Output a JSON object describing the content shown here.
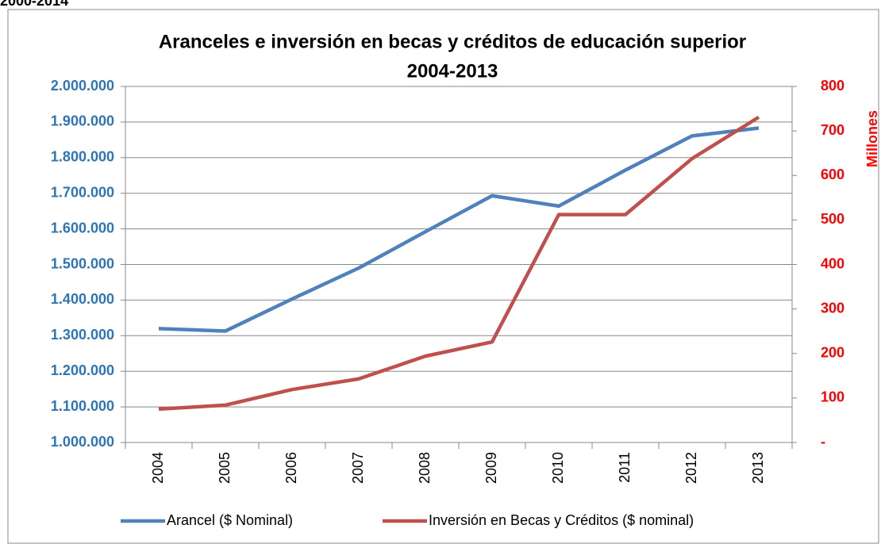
{
  "header": {
    "text": "2000-2014"
  },
  "chart_data": {
    "type": "line",
    "title": [
      "Aranceles e inversión en becas y créditos de educación superior",
      "2004-2013"
    ],
    "y2_label": "Millones",
    "categories": [
      "2004",
      "2005",
      "2006",
      "2007",
      "2008",
      "2009",
      "2010",
      "2011",
      "2012",
      "2013"
    ],
    "series": [
      {
        "name": "Arancel ($ Nominal)",
        "color": "#4f81bd",
        "values": [
          1320000,
          1313000,
          1403000,
          1490000,
          1592000,
          1693000,
          1664000,
          1765000,
          1861000,
          1883000
        ]
      },
      {
        "name": "Inversión en Becas y Créditos ($ nominal)",
        "color": "#c0504d",
        "axis": "y2",
        "values": [
          75,
          84,
          119,
          143,
          194,
          226,
          512,
          512,
          638,
          731
        ]
      }
    ],
    "ylim": [
      1000000,
      2000000
    ],
    "yticks": [
      {
        "value": 1000000,
        "label": "1.000.000"
      },
      {
        "value": 1100000,
        "label": "1.100.000"
      },
      {
        "value": 1200000,
        "label": "1.200.000"
      },
      {
        "value": 1300000,
        "label": "1.300.000"
      },
      {
        "value": 1400000,
        "label": "1.400.000"
      },
      {
        "value": 1500000,
        "label": "1.500.000"
      },
      {
        "value": 1600000,
        "label": "1.600.000"
      },
      {
        "value": 1700000,
        "label": "1.700.000"
      },
      {
        "value": 1800000,
        "label": "1.800.000"
      },
      {
        "value": 1900000,
        "label": "1.900.000"
      },
      {
        "value": 2000000,
        "label": "2.000.000"
      }
    ],
    "y2lim": [
      0,
      800
    ],
    "y2ticks": [
      {
        "value": 0,
        "label": "-"
      },
      100,
      200,
      300,
      400,
      500,
      600,
      700,
      800
    ],
    "grid": true,
    "legend": "bottom",
    "ytick_color": "#2e75b6",
    "y2tick_color": "#ff0000"
  }
}
